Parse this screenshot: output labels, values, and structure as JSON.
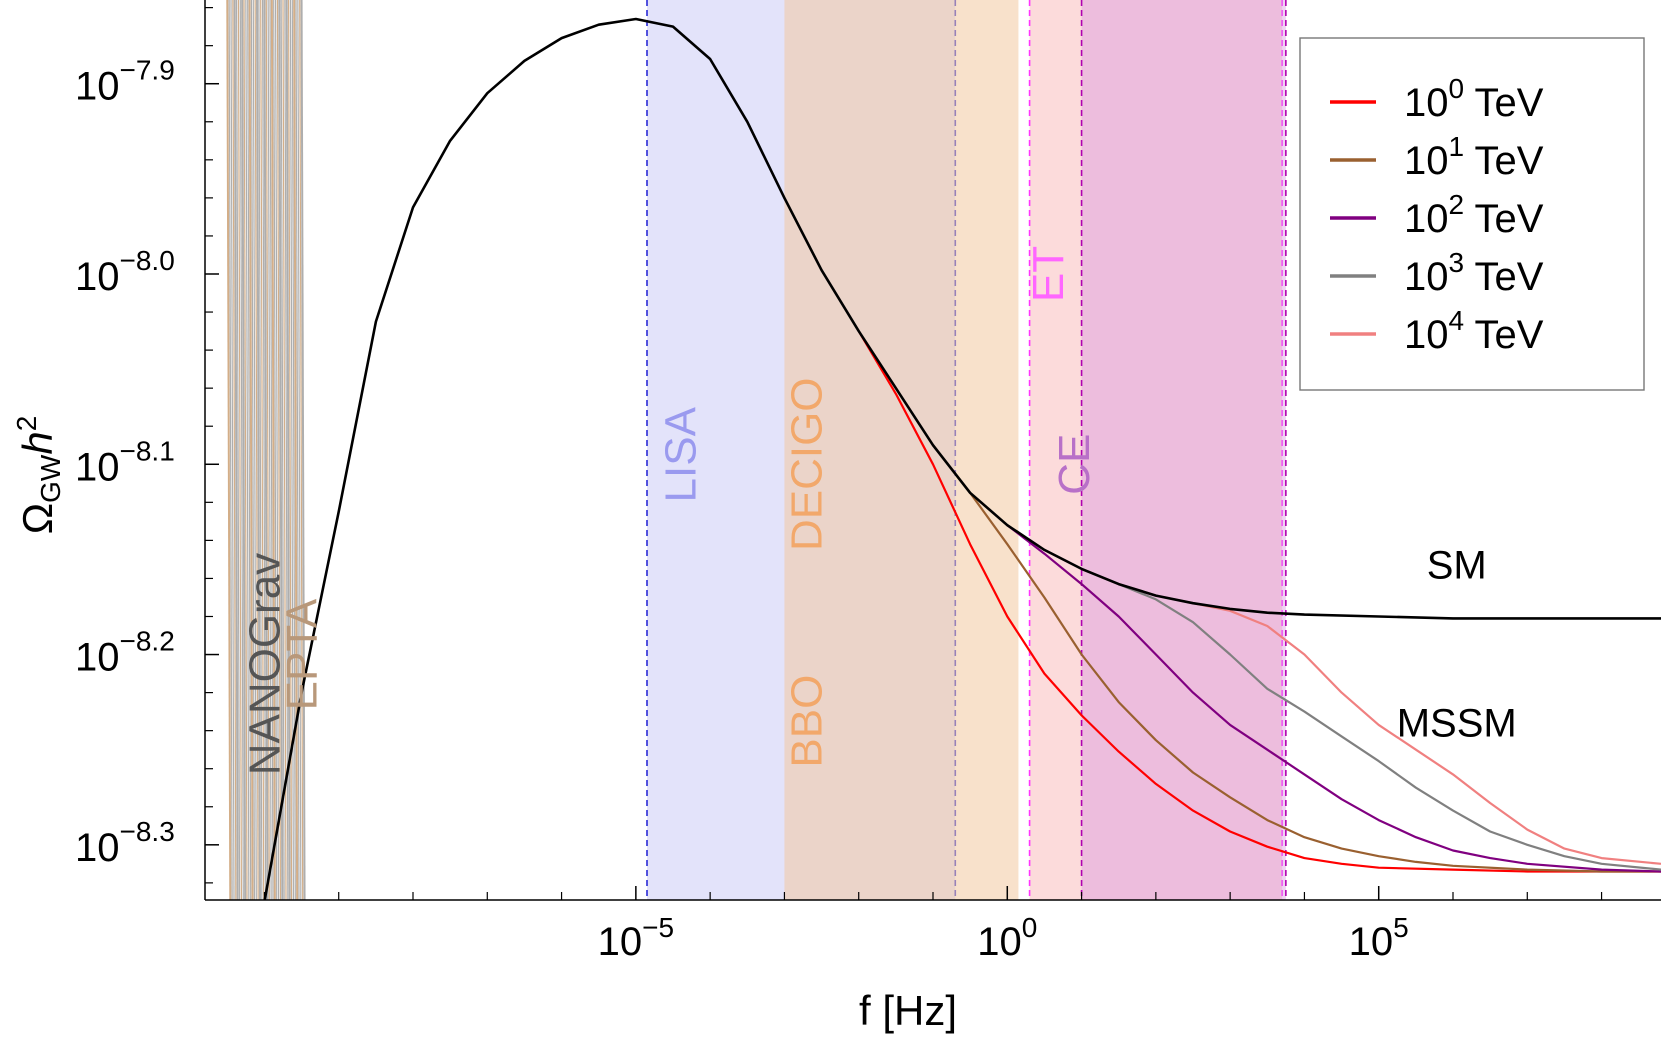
{
  "chart_data": {
    "type": "line",
    "title": "",
    "xlabel": "f [Hz]",
    "ylabel": "Ω_GW h²",
    "ylabel_main": "Ω",
    "ylabel_sub": "GW",
    "ylabel_h": "h",
    "ylabel_sup": "2",
    "x_scale": "log10",
    "y_scale": "log10",
    "xlim_log10": [
      -10.8,
      8.8
    ],
    "ylim_log10": [
      -8.329,
      -7.856
    ],
    "x_ticks": [
      {
        "exp": -5,
        "base": "10",
        "sup": "−5"
      },
      {
        "exp": 0,
        "base": "10",
        "sup": "0"
      },
      {
        "exp": 5,
        "base": "10",
        "sup": "5"
      }
    ],
    "y_ticks": [
      {
        "value": -7.9,
        "base": "10",
        "sup": "−7.9"
      },
      {
        "value": -8.0,
        "base": "10",
        "sup": "−8.0"
      },
      {
        "value": -8.1,
        "base": "10",
        "sup": "−8.1"
      },
      {
        "value": -8.2,
        "base": "10",
        "sup": "−8.2"
      },
      {
        "value": -8.3,
        "base": "10",
        "sup": "−8.3"
      }
    ],
    "bands": [
      {
        "name": "LISA",
        "fmin_log10": -4.85,
        "fmax_log10": -0.7,
        "color": "#c8c8f5",
        "opacity": 0.5,
        "border": "#2a2ad6",
        "label_f_log10": -4.2,
        "label_y_log10": -8.095
      },
      {
        "name": "DECIGO",
        "fmin_log10": -3.0,
        "fmax_log10": 0.15,
        "color": "#f3c9a0",
        "opacity": 0.55,
        "border": "none",
        "label_f_log10": -2.5,
        "label_y_log10": -8.1
      },
      {
        "name": "BBO",
        "fmin_log10": -3.0,
        "fmax_log10": 0.15,
        "color": "",
        "opacity": 0,
        "border": "none",
        "label_f_log10": -2.5,
        "label_y_log10": -8.235
      },
      {
        "name": "ET",
        "fmin_log10": 0.3,
        "fmax_log10": 3.7,
        "color": "#f8b0b0",
        "opacity": 0.45,
        "border": "#ff33ff",
        "label_f_log10": 0.75,
        "label_y_log10": -8.0
      },
      {
        "name": "CE",
        "fmin_log10": 1.0,
        "fmax_log10": 3.75,
        "color": "#d890e0",
        "opacity": 0.4,
        "border": "#b000b0",
        "label_f_log10": 1.1,
        "label_y_log10": -8.1
      }
    ],
    "pta_labels": [
      {
        "name": "NANOGrav",
        "color": "#555555",
        "label_f_log10": -9.8,
        "label_y_log10": -8.205
      },
      {
        "name": "EPTA",
        "color": "#b8987a",
        "label_f_log10": -9.3,
        "label_y_log10": -8.2
      }
    ],
    "pta_region": {
      "fmin_log10": -10.5,
      "fmax_log10": -9.5
    },
    "series": [
      {
        "name": "SM",
        "color": "#000000",
        "x": [
          -10.0,
          -9.5,
          -9.0,
          -8.5,
          -8.0,
          -7.5,
          -7.0,
          -6.5,
          -6.0,
          -5.5,
          -5.0,
          -4.5,
          -4.0,
          -3.5,
          -3.0,
          -2.5,
          -2.0,
          -1.5,
          -1.0,
          -0.5,
          0.0,
          0.5,
          1.0,
          1.5,
          2.0,
          2.5,
          3.0,
          3.5,
          4.0,
          5.0,
          6.0,
          7.0,
          8.0,
          8.8
        ],
        "y": [
          -8.33,
          -8.22,
          -8.125,
          -8.025,
          -7.965,
          -7.93,
          -7.905,
          -7.888,
          -7.876,
          -7.869,
          -7.866,
          -7.87,
          -7.887,
          -7.92,
          -7.96,
          -7.998,
          -8.03,
          -8.06,
          -8.09,
          -8.115,
          -8.132,
          -8.145,
          -8.155,
          -8.163,
          -8.169,
          -8.173,
          -8.176,
          -8.178,
          -8.179,
          -8.18,
          -8.181,
          -8.181,
          -8.181,
          -8.181
        ]
      },
      {
        "name": "10^0 TeV",
        "base": "10",
        "sup": "0",
        "unit": "TeV",
        "color": "#ff0000",
        "x": [
          -2.0,
          -1.5,
          -1.0,
          -0.5,
          0.0,
          0.5,
          1.0,
          1.5,
          2.0,
          2.5,
          3.0,
          3.5,
          4.0,
          4.5,
          5.0,
          6.0,
          7.0,
          8.0,
          8.8
        ],
        "y": [
          -8.03,
          -8.063,
          -8.1,
          -8.142,
          -8.18,
          -8.21,
          -8.232,
          -8.251,
          -8.268,
          -8.282,
          -8.293,
          -8.301,
          -8.307,
          -8.31,
          -8.312,
          -8.313,
          -8.314,
          -8.314,
          -8.314
        ]
      },
      {
        "name": "10^1 TeV",
        "base": "10",
        "sup": "1",
        "unit": "TeV",
        "color": "#9a6030",
        "x": [
          -1.0,
          -0.5,
          0.0,
          0.5,
          1.0,
          1.5,
          2.0,
          2.5,
          3.0,
          3.5,
          4.0,
          4.5,
          5.0,
          5.5,
          6.0,
          7.0,
          8.0,
          8.8
        ],
        "y": [
          -8.09,
          -8.115,
          -8.142,
          -8.17,
          -8.2,
          -8.225,
          -8.245,
          -8.262,
          -8.275,
          -8.287,
          -8.296,
          -8.302,
          -8.306,
          -8.309,
          -8.311,
          -8.313,
          -8.314,
          -8.314
        ]
      },
      {
        "name": "10^2 TeV",
        "base": "10",
        "sup": "2",
        "unit": "TeV",
        "color": "#800080",
        "x": [
          0.0,
          0.5,
          1.0,
          1.5,
          2.0,
          2.5,
          3.0,
          3.5,
          4.0,
          4.5,
          5.0,
          5.5,
          6.0,
          6.5,
          7.0,
          8.0,
          8.8
        ],
        "y": [
          -8.132,
          -8.147,
          -8.163,
          -8.18,
          -8.2,
          -8.22,
          -8.237,
          -8.25,
          -8.263,
          -8.276,
          -8.287,
          -8.296,
          -8.303,
          -8.307,
          -8.31,
          -8.313,
          -8.314
        ]
      },
      {
        "name": "10^3 TeV",
        "base": "10",
        "sup": "3",
        "unit": "TeV",
        "color": "#808080",
        "x": [
          1.0,
          1.5,
          2.0,
          2.5,
          3.0,
          3.5,
          4.0,
          4.5,
          5.0,
          5.5,
          6.0,
          6.5,
          7.0,
          7.5,
          8.0,
          8.8
        ],
        "y": [
          -8.155,
          -8.163,
          -8.171,
          -8.183,
          -8.2,
          -8.218,
          -8.23,
          -8.243,
          -8.256,
          -8.27,
          -8.282,
          -8.293,
          -8.3,
          -8.306,
          -8.31,
          -8.313
        ]
      },
      {
        "name": "10^4 TeV",
        "base": "10",
        "sup": "4",
        "unit": "TeV",
        "color": "#f08080",
        "x": [
          1.0,
          1.5,
          2.0,
          2.5,
          3.0,
          3.5,
          4.0,
          4.5,
          5.0,
          5.5,
          6.0,
          6.5,
          7.0,
          7.5,
          8.0,
          8.8
        ],
        "y": [
          -8.155,
          -8.163,
          -8.169,
          -8.173,
          -8.177,
          -8.185,
          -8.2,
          -8.22,
          -8.237,
          -8.25,
          -8.263,
          -8.278,
          -8.292,
          -8.302,
          -8.307,
          -8.31
        ]
      }
    ],
    "curve_labels": [
      {
        "text": "SM",
        "f_log10": 6.05,
        "y_log10": -8.16
      },
      {
        "text": "MSSM",
        "f_log10": 6.05,
        "y_log10": -8.243
      }
    ],
    "legend": {
      "position": "top-right",
      "entries": [
        "10^0 TeV",
        "10^1 TeV",
        "10^2 TeV",
        "10^3 TeV",
        "10^4 TeV"
      ]
    }
  }
}
